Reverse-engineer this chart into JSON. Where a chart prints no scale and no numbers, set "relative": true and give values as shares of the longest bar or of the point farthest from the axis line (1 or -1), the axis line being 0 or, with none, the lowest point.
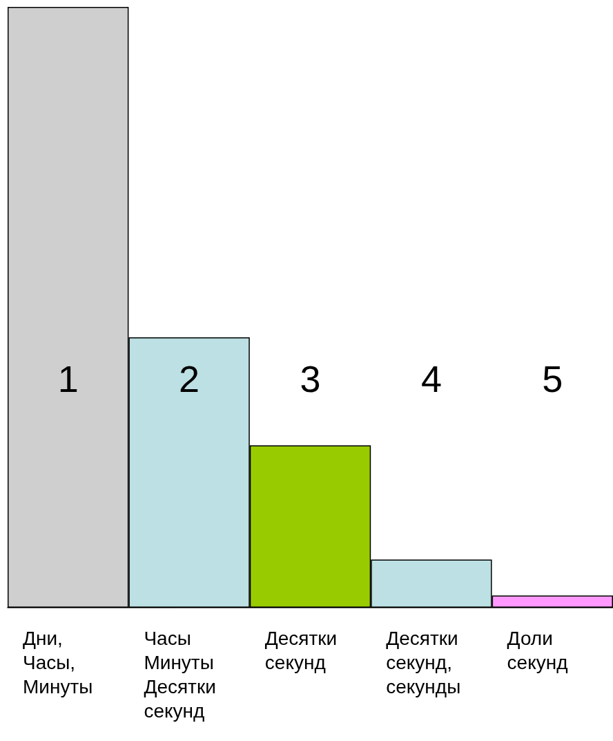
{
  "chart_data": {
    "type": "bar",
    "relative": true,
    "categories": [
      "Дни,\nЧасы,\nМинуты",
      "Часы\nМинуты\nДесятки\nсекунд",
      "Десятки\nсекунд",
      "Десятки\nсекунд,\nсекунды",
      "Доли\nсекунд"
    ],
    "values": [
      1,
      0.45,
      0.27,
      0.08,
      0.02
    ],
    "colors": [
      "#cfcfcf",
      "#bce0e3",
      "#99cc00",
      "#bce0e3",
      "#ff99ff"
    ],
    "annotations": [
      "1",
      "2",
      "3",
      "4",
      "5"
    ]
  }
}
